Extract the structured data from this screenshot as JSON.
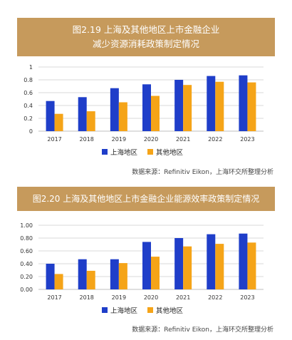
{
  "charts": [
    {
      "title_line1": "图2.19 上海及其他地区上市金融企业",
      "title_line2": "减少资源消耗政策制定情况",
      "source": "数据来源：Refinitiv Eikon，上海环交所整理分析"
    },
    {
      "title_line1": "图2.20 上海及其他地区上市金融企业能源效率政策制定情况",
      "source": "数据来源：Refinitiv Eikon，上海环交所整理分析"
    }
  ],
  "colors": {
    "shanghai": "#1f3ec9",
    "other": "#f5a418",
    "banner": "#c69a5c"
  },
  "chart_data": [
    {
      "type": "bar",
      "title": "图2.19 上海及其他地区上市金融企业减少资源消耗政策制定情况",
      "categories": [
        "2017",
        "2018",
        "2019",
        "2020",
        "2021",
        "2022",
        "2023"
      ],
      "series": [
        {
          "name": "上海地区",
          "values": [
            0.47,
            0.53,
            0.67,
            0.73,
            0.8,
            0.86,
            0.87
          ]
        },
        {
          "name": "其他地区",
          "values": [
            0.27,
            0.31,
            0.45,
            0.55,
            0.72,
            0.77,
            0.76
          ]
        }
      ],
      "ylim": [
        0,
        1
      ],
      "yticks": [
        "0",
        "0.2",
        "0.4",
        "0.6",
        "0.8",
        "1"
      ],
      "grid": true,
      "legend": "bottom"
    },
    {
      "type": "bar",
      "title": "图2.20 上海及其他地区上市金融企业能源效率政策制定情况",
      "categories": [
        "2017",
        "2018",
        "2019",
        "2020",
        "2021",
        "2022",
        "2023"
      ],
      "series": [
        {
          "name": "上海地区",
          "values": [
            0.4,
            0.47,
            0.47,
            0.74,
            0.8,
            0.86,
            0.87
          ]
        },
        {
          "name": "其他地区",
          "values": [
            0.24,
            0.29,
            0.41,
            0.51,
            0.67,
            0.71,
            0.73
          ]
        }
      ],
      "ylim": [
        0,
        1
      ],
      "yticks": [
        "0.00",
        "0.20",
        "0.40",
        "0.60",
        "0.80",
        "1.00"
      ],
      "grid": true,
      "legend": "bottom"
    }
  ]
}
